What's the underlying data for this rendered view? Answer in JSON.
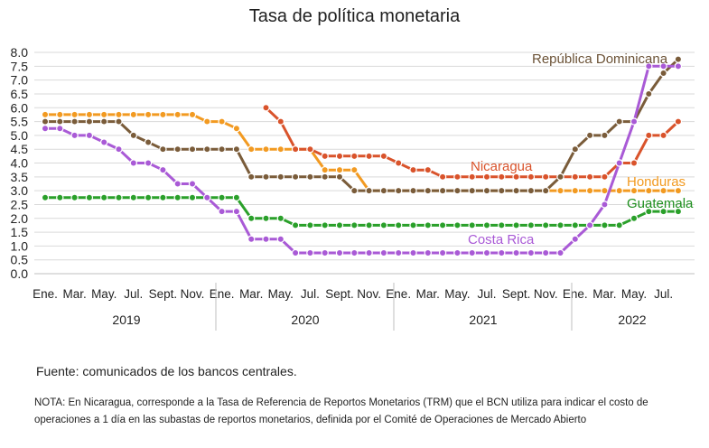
{
  "chart_data": {
    "type": "line",
    "title": "Tasa de política monetaria",
    "ylim": [
      0,
      8
    ],
    "yticks": [
      "0.0",
      "0.5",
      "1.0",
      "1.5",
      "2.0",
      "2.5",
      "3.0",
      "3.5",
      "4.0",
      "4.5",
      "5.0",
      "5.5",
      "6.0",
      "6.5",
      "7.0",
      "7.5",
      "8.0"
    ],
    "month_labels": [
      "Ene.",
      "Mar.",
      "May.",
      "Jul.",
      "Sept.",
      "Nov.",
      "Ene.",
      "Mar.",
      "May.",
      "Jul.",
      "Sept.",
      "Nov.",
      "Ene.",
      "Mar.",
      "May.",
      "Jul.",
      "Sept.",
      "Nov.",
      "Ene.",
      "Mar.",
      "May.",
      "Jul."
    ],
    "years": [
      "2019",
      "2020",
      "2021",
      "2022"
    ],
    "x": [
      "2019-01",
      "2019-02",
      "2019-03",
      "2019-04",
      "2019-05",
      "2019-06",
      "2019-07",
      "2019-08",
      "2019-09",
      "2019-10",
      "2019-11",
      "2019-12",
      "2020-01",
      "2020-02",
      "2020-03",
      "2020-04",
      "2020-05",
      "2020-06",
      "2020-07",
      "2020-08",
      "2020-09",
      "2020-10",
      "2020-11",
      "2020-12",
      "2021-01",
      "2021-02",
      "2021-03",
      "2021-04",
      "2021-05",
      "2021-06",
      "2021-07",
      "2021-08",
      "2021-09",
      "2021-10",
      "2021-11",
      "2021-12",
      "2022-01",
      "2022-02",
      "2022-03",
      "2022-04",
      "2022-05",
      "2022-06",
      "2022-07",
      "2022-08"
    ],
    "grid": true,
    "series": [
      {
        "name": "República Dominicana",
        "color": "#7a5c3a",
        "values": [
          5.5,
          5.5,
          5.5,
          5.5,
          5.5,
          5.5,
          5.0,
          4.75,
          4.5,
          4.5,
          4.5,
          4.5,
          4.5,
          4.5,
          3.5,
          3.5,
          3.5,
          3.5,
          3.5,
          3.5,
          3.5,
          3.0,
          3.0,
          3.0,
          3.0,
          3.0,
          3.0,
          3.0,
          3.0,
          3.0,
          3.0,
          3.0,
          3.0,
          3.0,
          3.0,
          3.5,
          4.5,
          5.0,
          5.0,
          5.5,
          5.5,
          6.5,
          7.25,
          7.75
        ]
      },
      {
        "name": "Nicaragua",
        "color": "#d9532b",
        "values": [
          null,
          null,
          null,
          null,
          null,
          null,
          null,
          null,
          null,
          null,
          null,
          null,
          null,
          null,
          null,
          6.0,
          5.5,
          4.5,
          4.5,
          4.25,
          4.25,
          4.25,
          4.25,
          4.25,
          4.0,
          3.75,
          3.75,
          3.5,
          3.5,
          3.5,
          3.5,
          3.5,
          3.5,
          3.5,
          3.5,
          3.5,
          3.5,
          3.5,
          3.5,
          4.0,
          4.0,
          5.0,
          5.0,
          5.5
        ]
      },
      {
        "name": "Honduras",
        "color": "#f29a21",
        "values": [
          5.75,
          5.75,
          5.75,
          5.75,
          5.75,
          5.75,
          5.75,
          5.75,
          5.75,
          5.75,
          5.75,
          5.5,
          5.5,
          5.25,
          4.5,
          4.5,
          4.5,
          4.5,
          4.5,
          3.75,
          3.75,
          3.75,
          3.0,
          3.0,
          3.0,
          3.0,
          3.0,
          3.0,
          3.0,
          3.0,
          3.0,
          3.0,
          3.0,
          3.0,
          3.0,
          3.0,
          3.0,
          3.0,
          3.0,
          3.0,
          3.0,
          3.0,
          3.0,
          3.0
        ]
      },
      {
        "name": "Guatemala",
        "color": "#2aa02a",
        "values": [
          2.75,
          2.75,
          2.75,
          2.75,
          2.75,
          2.75,
          2.75,
          2.75,
          2.75,
          2.75,
          2.75,
          2.75,
          2.75,
          2.75,
          2.0,
          2.0,
          2.0,
          1.75,
          1.75,
          1.75,
          1.75,
          1.75,
          1.75,
          1.75,
          1.75,
          1.75,
          1.75,
          1.75,
          1.75,
          1.75,
          1.75,
          1.75,
          1.75,
          1.75,
          1.75,
          1.75,
          1.75,
          1.75,
          1.75,
          1.75,
          2.0,
          2.25,
          2.25,
          2.25
        ]
      },
      {
        "name": "Costa Rica",
        "color": "#a95ad6",
        "values": [
          5.25,
          5.25,
          5.0,
          5.0,
          4.75,
          4.5,
          4.0,
          4.0,
          3.75,
          3.25,
          3.25,
          2.75,
          2.25,
          2.25,
          1.25,
          1.25,
          1.25,
          0.75,
          0.75,
          0.75,
          0.75,
          0.75,
          0.75,
          0.75,
          0.75,
          0.75,
          0.75,
          0.75,
          0.75,
          0.75,
          0.75,
          0.75,
          0.75,
          0.75,
          0.75,
          0.75,
          1.25,
          1.75,
          2.5,
          4.0,
          5.5,
          7.5,
          7.5,
          7.5
        ]
      }
    ]
  },
  "labels": {
    "rd": "República Dominicana",
    "nic": "Nicaragua",
    "hon": "Honduras",
    "gua": "Guatemala",
    "cr": "Costa Rica"
  },
  "footer": {
    "source": "Fuente: comunicados de los bancos centrales.",
    "note": "NOTA: En Nicaragua, corresponde a la Tasa de Referencia de Reportos Monetarios (TRM) que el BCN utiliza para indicar el costo de operaciones a 1 día en las subastas de reportos monetarios, definida por el Comité de Operaciones de Mercado Abierto"
  }
}
